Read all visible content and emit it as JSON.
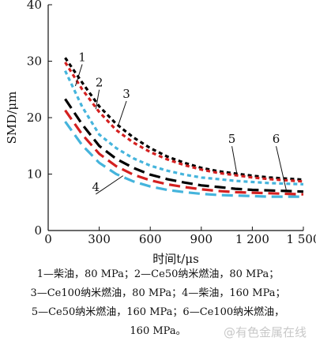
{
  "chart_data": {
    "type": "line",
    "xlabel": "时间t/μs",
    "ylabel": "SMD/μm",
    "xlim": [
      0,
      1500
    ],
    "ylim": [
      0,
      40
    ],
    "x_ticks": [
      0,
      300,
      600,
      900,
      1200,
      1500
    ],
    "x_tick_labels": [
      "0",
      "300",
      "600",
      "900",
      "1 200",
      "1 500"
    ],
    "y_ticks": [
      0,
      10,
      20,
      30,
      40
    ],
    "grid": false,
    "series": [
      {
        "name": "1",
        "color": "#000000",
        "dash": "dot",
        "x": [
          100,
          200,
          300,
          400,
          500,
          600,
          700,
          800,
          900,
          1000,
          1100,
          1200,
          1300,
          1400,
          1500
        ],
        "y": [
          30.6,
          26.2,
          22.0,
          18.9,
          16.5,
          14.6,
          13.1,
          12.0,
          11.1,
          10.5,
          10.1,
          9.7,
          9.4,
          9.2,
          9.0
        ]
      },
      {
        "name": "2",
        "color": "#d42020",
        "dash": "dot",
        "x": [
          100,
          200,
          300,
          400,
          500,
          600,
          700,
          800,
          900,
          1000,
          1100,
          1200,
          1300,
          1400,
          1500
        ],
        "y": [
          29.8,
          25.0,
          21.0,
          17.8,
          15.6,
          13.9,
          12.6,
          11.6,
          10.8,
          10.2,
          9.8,
          9.4,
          9.1,
          8.9,
          8.7
        ]
      },
      {
        "name": "3",
        "color": "#45b4dc",
        "dash": "dot",
        "x": [
          100,
          200,
          300,
          400,
          500,
          600,
          700,
          800,
          900,
          1000,
          1100,
          1200,
          1300,
          1400,
          1500
        ],
        "y": [
          28.3,
          21.9,
          17.0,
          14.6,
          12.8,
          11.5,
          10.6,
          9.9,
          9.4,
          9.1,
          8.8,
          8.6,
          8.4,
          8.3,
          8.2
        ]
      },
      {
        "name": "4",
        "color": "#45b4dc",
        "dash": "dash",
        "x": [
          100,
          200,
          300,
          400,
          500,
          600,
          700,
          800,
          900,
          1000,
          1100,
          1200,
          1300,
          1400,
          1500
        ],
        "y": [
          19.3,
          15.1,
          12.0,
          10.0,
          8.7,
          7.8,
          7.2,
          6.8,
          6.5,
          6.3,
          6.2,
          6.1,
          6.0,
          6.0,
          6.0
        ]
      },
      {
        "name": "5",
        "color": "#d42020",
        "dash": "dash",
        "x": [
          100,
          200,
          300,
          400,
          500,
          600,
          700,
          800,
          900,
          1000,
          1100,
          1200,
          1300,
          1400,
          1500
        ],
        "y": [
          21.3,
          17.0,
          13.6,
          11.4,
          9.9,
          8.9,
          8.2,
          7.7,
          7.3,
          7.0,
          6.8,
          6.7,
          6.6,
          6.5,
          6.4
        ]
      },
      {
        "name": "6",
        "color": "#000000",
        "dash": "dash",
        "x": [
          100,
          200,
          300,
          400,
          500,
          600,
          700,
          800,
          900,
          1000,
          1100,
          1200,
          1300,
          1400,
          1500
        ],
        "y": [
          23.3,
          18.8,
          15.0,
          12.7,
          11.1,
          9.9,
          9.1,
          8.5,
          8.0,
          7.7,
          7.4,
          7.2,
          7.1,
          7.0,
          6.9
        ]
      }
    ],
    "annotations": [
      {
        "text": "1",
        "x": 160,
        "y": 25.6,
        "label_x": 200,
        "label_y": 30.0
      },
      {
        "text": "2",
        "x": 280,
        "y": 21.5,
        "label_x": 300,
        "label_y": 25.5
      },
      {
        "text": "3",
        "x": 410,
        "y": 18.5,
        "label_x": 460,
        "label_y": 23.5
      },
      {
        "text": "4",
        "x": 440,
        "y": 9.7,
        "label_x": 280,
        "label_y": 7.0
      },
      {
        "text": "5",
        "x": 1110,
        "y": 9.9,
        "label_x": 1080,
        "label_y": 15.5
      },
      {
        "text": "6",
        "x": 1400,
        "y": 7.1,
        "label_x": 1340,
        "label_y": 15.5
      }
    ],
    "legend_text": [
      "1—柴油，80 MPa；2—Ce50纳米燃油，80 MPa；",
      "3—Ce100纳米燃油，80 MPa；4—柴油，160 MPa；",
      "5—Ce50纳米燃油，160 MPa；6—Ce100纳米燃油，",
      "160 MPa。"
    ]
  },
  "watermark": "@有色金属在线"
}
